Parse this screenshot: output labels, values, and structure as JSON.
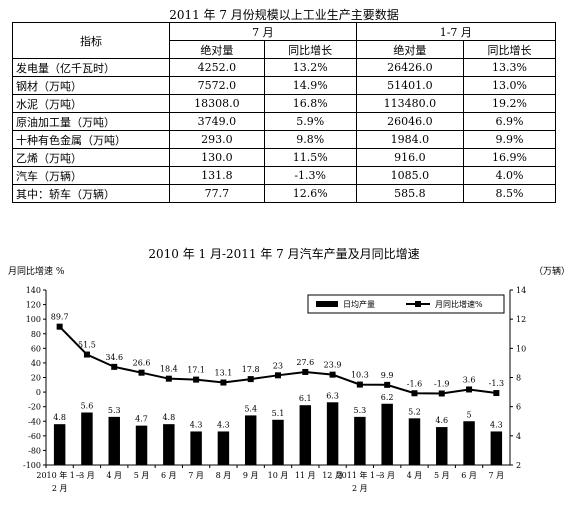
{
  "table": {
    "title": "2011 年 7 月份规模以上工业生产主要数据",
    "header_indicator": "指标",
    "header_month": "7 月",
    "header_cumulative": "1-7 月",
    "sub_abs": "绝对量",
    "sub_growth": "同比增长",
    "rows": [
      {
        "label": "发电量（亿千瓦时）",
        "m_abs": "4252.0",
        "m_growth": "13.2%",
        "c_abs": "26426.0",
        "c_growth": "13.3%"
      },
      {
        "label": "钢材（万吨）",
        "m_abs": "7572.0",
        "m_growth": "14.9%",
        "c_abs": "51401.0",
        "c_growth": "13.0%"
      },
      {
        "label": "水泥（万吨）",
        "m_abs": "18308.0",
        "m_growth": "16.8%",
        "c_abs": "113480.0",
        "c_growth": "19.2%"
      },
      {
        "label": "原油加工量（万吨）",
        "m_abs": "3749.0",
        "m_growth": "5.9%",
        "c_abs": "26046.0",
        "c_growth": "6.9%"
      },
      {
        "label": "十种有色金属（万吨）",
        "m_abs": "293.0",
        "m_growth": "9.8%",
        "c_abs": "1984.0",
        "c_growth": "9.9%"
      },
      {
        "label": "乙烯（万吨）",
        "m_abs": "130.0",
        "m_growth": "11.5%",
        "c_abs": "916.0",
        "c_growth": "16.9%"
      },
      {
        "label": "汽车（万辆）",
        "m_abs": "131.8",
        "m_growth": "-1.3%",
        "c_abs": "1085.0",
        "c_growth": "4.0%"
      },
      {
        "label": "其中：轿车（万辆）",
        "m_abs": "77.7",
        "m_growth": "12.6%",
        "c_abs": "585.8",
        "c_growth": "8.5%"
      }
    ]
  },
  "chart_data": {
    "type": "bar",
    "title": "2010 年 1 月-2011 年 7 月汽车产量及月同比增速",
    "left_axis_label": "月同比增速 %",
    "right_axis_label": "（万辆）",
    "left_ylim": [
      -100,
      140
    ],
    "left_ticks": [
      "140",
      "120",
      "100",
      "80",
      "60",
      "40",
      "20",
      "0",
      "-20",
      "-40",
      "-60",
      "-80",
      "-100"
    ],
    "right_ylim": [
      2,
      14
    ],
    "right_ticks": [
      "14",
      "12",
      "10",
      "8",
      "6",
      "4",
      "2"
    ],
    "categories": [
      {
        "label": "2010 年 1－",
        "label2": "2 月"
      },
      {
        "label": "3 月",
        "label2": ""
      },
      {
        "label": "4 月",
        "label2": ""
      },
      {
        "label": "5 月",
        "label2": ""
      },
      {
        "label": "6 月",
        "label2": ""
      },
      {
        "label": "7 月",
        "label2": ""
      },
      {
        "label": "8 月",
        "label2": ""
      },
      {
        "label": "9 月",
        "label2": ""
      },
      {
        "label": "10 月",
        "label2": ""
      },
      {
        "label": "11 月",
        "label2": ""
      },
      {
        "label": "12 月",
        "label2": ""
      },
      {
        "label": "2011 年 1－",
        "label2": "2 月"
      },
      {
        "label": "3 月",
        "label2": ""
      },
      {
        "label": "4 月",
        "label2": ""
      },
      {
        "label": "5 月",
        "label2": ""
      },
      {
        "label": "6 月",
        "label2": ""
      },
      {
        "label": "7 月",
        "label2": ""
      }
    ],
    "series": [
      {
        "name": "日均产量",
        "axis": "right",
        "values": [
          4.8,
          5.6,
          5.3,
          4.7,
          4.8,
          4.3,
          4.3,
          5.4,
          5.1,
          6.1,
          6.3,
          5.3,
          6.2,
          5.2,
          4.6,
          5,
          4.3
        ],
        "labels": [
          "4.8",
          "5.6",
          "5.3",
          "4.7",
          "4.8",
          "4.3",
          "4.3",
          "5.4",
          "5.1",
          "6.1",
          "6.3",
          "5.3",
          "6.2",
          "5.2",
          "4.6",
          "5",
          "4.3"
        ]
      },
      {
        "name": "月同比增速%",
        "axis": "left",
        "values": [
          89.7,
          51.5,
          34.6,
          26.6,
          18.4,
          17.1,
          13.1,
          17.8,
          23,
          27.6,
          23.9,
          10.3,
          9.9,
          -1.6,
          -1.9,
          3.6,
          -1.3
        ],
        "labels": [
          "89.7",
          "51.5",
          "34.6",
          "26.6",
          "18.4",
          "17.1",
          "13.1",
          "17.8",
          "23",
          "27.6",
          "23.9",
          "10.3",
          "9.9",
          "-1.6",
          "-1.9",
          "3.6",
          "-1.3"
        ]
      }
    ],
    "legend_position": "top-right",
    "grid": false,
    "colors": {
      "bar": "#000000",
      "line": "#000000"
    }
  }
}
